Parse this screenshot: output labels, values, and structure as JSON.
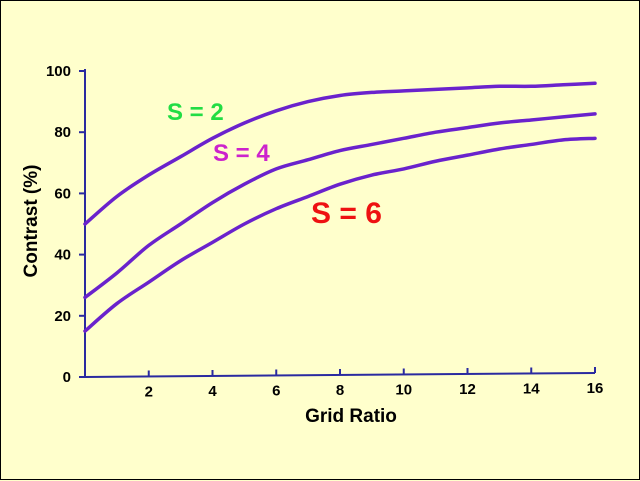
{
  "chart_data": {
    "type": "line",
    "xlabel": "Grid Ratio",
    "ylabel": "Contrast (%)",
    "xlim": [
      0,
      16
    ],
    "ylim": [
      0,
      100
    ],
    "xticks": [
      "2",
      "4",
      "6",
      "8",
      "10",
      "12",
      "14",
      "16"
    ],
    "yticks": [
      "0",
      "20",
      "40",
      "60",
      "80",
      "100"
    ],
    "grid": false,
    "line_color": "#6a22cc",
    "series": [
      {
        "name": "S = 2",
        "color": "#22dd44",
        "x": [
          0,
          1,
          2,
          3,
          4,
          5,
          6,
          7,
          8,
          9,
          10,
          11,
          12,
          13,
          14,
          15,
          16
        ],
        "values": [
          50,
          59,
          66,
          72,
          78,
          83,
          87,
          90,
          92,
          93,
          93.5,
          94,
          94.5,
          95,
          95,
          95.5,
          96
        ]
      },
      {
        "name": "S = 4",
        "color": "#cc22cc",
        "x": [
          0,
          1,
          2,
          3,
          4,
          5,
          6,
          7,
          8,
          9,
          10,
          11,
          12,
          13,
          14,
          15,
          16
        ],
        "values": [
          26,
          34,
          43,
          50,
          57,
          63,
          68,
          71,
          74,
          76,
          78,
          80,
          81.5,
          83,
          84,
          85,
          86
        ]
      },
      {
        "name": "S = 6",
        "color": "#ee1111",
        "x": [
          0,
          1,
          2,
          3,
          4,
          5,
          6,
          7,
          8,
          9,
          10,
          11,
          12,
          13,
          14,
          15,
          16
        ],
        "values": [
          15,
          24,
          31,
          38,
          44,
          50,
          55,
          59,
          63,
          66,
          68,
          70.5,
          72.5,
          74.5,
          76,
          77.5,
          78
        ]
      }
    ]
  }
}
